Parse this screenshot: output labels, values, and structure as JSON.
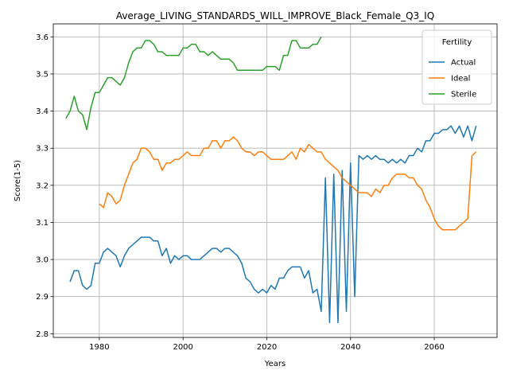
{
  "chart_data": {
    "type": "line",
    "title": "Average_LIVING_STANDARDS_WILL_IMPROVE_Black_Female_Q3_IQ",
    "xlabel": "Years",
    "ylabel": "Score(1-5)",
    "xlim": [
      1969,
      2075
    ],
    "ylim": [
      2.79,
      3.635
    ],
    "xticks": [
      1980,
      2000,
      2020,
      2040,
      2060
    ],
    "yticks": [
      2.8,
      2.9,
      3.0,
      3.1,
      3.2,
      3.3,
      3.4,
      3.5,
      3.6
    ],
    "grid": true,
    "legend": {
      "title": "Fertility",
      "placement": "top-right"
    },
    "series": [
      {
        "name": "Actual",
        "color": "#1f77b4",
        "x": [
          1973,
          1974,
          1975,
          1976,
          1977,
          1978,
          1979,
          1980,
          1981,
          1982,
          1983,
          1984,
          1985,
          1986,
          1987,
          1988,
          1989,
          1990,
          1991,
          1992,
          1993,
          1994,
          1995,
          1996,
          1997,
          1998,
          1999,
          2000,
          2001,
          2002,
          2003,
          2004,
          2005,
          2006,
          2007,
          2008,
          2009,
          2010,
          2011,
          2012,
          2013,
          2014,
          2015,
          2016,
          2017,
          2018,
          2019,
          2020,
          2021,
          2022,
          2023,
          2024,
          2025,
          2026,
          2027,
          2028,
          2029,
          2030,
          2031,
          2032,
          2033,
          2034,
          2035,
          2036,
          2037,
          2038,
          2039,
          2040,
          2041,
          2042,
          2043,
          2044,
          2045,
          2046,
          2047,
          2048,
          2049,
          2050,
          2051,
          2052,
          2053,
          2054,
          2055,
          2056,
          2057,
          2058,
          2059,
          2060,
          2061,
          2062,
          2063,
          2064,
          2065,
          2066,
          2067,
          2068,
          2069,
          2070
        ],
        "values": [
          2.94,
          2.97,
          2.97,
          2.93,
          2.92,
          2.93,
          2.99,
          2.99,
          3.02,
          3.03,
          3.02,
          3.01,
          2.98,
          3.01,
          3.03,
          3.04,
          3.05,
          3.06,
          3.06,
          3.06,
          3.05,
          3.05,
          3.01,
          3.03,
          2.99,
          3.01,
          3.0,
          3.01,
          3.01,
          3.0,
          3.0,
          3.0,
          3.01,
          3.02,
          3.03,
          3.03,
          3.02,
          3.03,
          3.03,
          3.02,
          3.01,
          2.99,
          2.95,
          2.94,
          2.92,
          2.91,
          2.92,
          2.91,
          2.93,
          2.92,
          2.95,
          2.95,
          2.97,
          2.98,
          2.98,
          2.98,
          2.95,
          2.97,
          2.91,
          2.92,
          2.86,
          3.22,
          2.83,
          3.23,
          2.83,
          3.24,
          2.86,
          3.26,
          2.9,
          3.28,
          3.27,
          3.28,
          3.27,
          3.28,
          3.27,
          3.27,
          3.26,
          3.27,
          3.26,
          3.27,
          3.26,
          3.28,
          3.28,
          3.3,
          3.29,
          3.32,
          3.32,
          3.34,
          3.34,
          3.35,
          3.35,
          3.36,
          3.34,
          3.36,
          3.33,
          3.36,
          3.32,
          3.36
        ]
      },
      {
        "name": "Ideal",
        "color": "#ff7f0e",
        "x": [
          1980,
          1981,
          1982,
          1983,
          1984,
          1985,
          1986,
          1987,
          1988,
          1989,
          1990,
          1991,
          1992,
          1993,
          1994,
          1995,
          1996,
          1997,
          1998,
          1999,
          2000,
          2001,
          2002,
          2003,
          2004,
          2005,
          2006,
          2007,
          2008,
          2009,
          2010,
          2011,
          2012,
          2013,
          2014,
          2015,
          2016,
          2017,
          2018,
          2019,
          2020,
          2021,
          2022,
          2023,
          2024,
          2025,
          2026,
          2027,
          2028,
          2029,
          2030,
          2031,
          2032,
          2033,
          2034,
          2035,
          2036,
          2037,
          2038,
          2039,
          2040,
          2041,
          2042,
          2043,
          2044,
          2045,
          2046,
          2047,
          2048,
          2049,
          2050,
          2051,
          2052,
          2053,
          2054,
          2055,
          2056,
          2057,
          2058,
          2059,
          2060,
          2061,
          2062,
          2063,
          2064,
          2065,
          2066,
          2067,
          2068,
          2069,
          2070
        ],
        "values": [
          3.15,
          3.14,
          3.18,
          3.17,
          3.15,
          3.16,
          3.2,
          3.23,
          3.26,
          3.27,
          3.3,
          3.3,
          3.29,
          3.27,
          3.27,
          3.24,
          3.26,
          3.26,
          3.27,
          3.27,
          3.28,
          3.29,
          3.28,
          3.28,
          3.28,
          3.3,
          3.3,
          3.32,
          3.32,
          3.3,
          3.32,
          3.32,
          3.33,
          3.32,
          3.3,
          3.29,
          3.29,
          3.28,
          3.29,
          3.29,
          3.28,
          3.27,
          3.27,
          3.27,
          3.27,
          3.28,
          3.29,
          3.27,
          3.3,
          3.29,
          3.31,
          3.3,
          3.29,
          3.29,
          3.27,
          3.26,
          3.25,
          3.24,
          3.22,
          3.21,
          3.2,
          3.19,
          3.18,
          3.18,
          3.18,
          3.17,
          3.19,
          3.18,
          3.2,
          3.2,
          3.22,
          3.23,
          3.23,
          3.23,
          3.22,
          3.22,
          3.2,
          3.19,
          3.16,
          3.14,
          3.11,
          3.09,
          3.08,
          3.08,
          3.08,
          3.08,
          3.09,
          3.1,
          3.11,
          3.28,
          3.29
        ]
      },
      {
        "name": "Sterile",
        "color": "#2ca02c",
        "x": [
          1972,
          1973,
          1974,
          1975,
          1976,
          1977,
          1978,
          1979,
          1980,
          1981,
          1982,
          1983,
          1984,
          1985,
          1986,
          1987,
          1988,
          1989,
          1990,
          1991,
          1992,
          1993,
          1994,
          1995,
          1996,
          1997,
          1998,
          1999,
          2000,
          2001,
          2002,
          2003,
          2004,
          2005,
          2006,
          2007,
          2008,
          2009,
          2010,
          2011,
          2012,
          2013,
          2014,
          2015,
          2016,
          2017,
          2018,
          2019,
          2020,
          2021,
          2022,
          2023,
          2024,
          2025,
          2026,
          2027,
          2028,
          2029,
          2030,
          2031,
          2032,
          2033
        ],
        "values": [
          3.38,
          3.4,
          3.44,
          3.4,
          3.39,
          3.35,
          3.41,
          3.45,
          3.45,
          3.47,
          3.49,
          3.49,
          3.48,
          3.47,
          3.49,
          3.53,
          3.56,
          3.57,
          3.57,
          3.59,
          3.59,
          3.58,
          3.56,
          3.56,
          3.55,
          3.55,
          3.55,
          3.55,
          3.57,
          3.57,
          3.58,
          3.58,
          3.56,
          3.56,
          3.55,
          3.56,
          3.55,
          3.54,
          3.54,
          3.54,
          3.53,
          3.51,
          3.51,
          3.51,
          3.51,
          3.51,
          3.51,
          3.51,
          3.52,
          3.52,
          3.52,
          3.51,
          3.55,
          3.55,
          3.59,
          3.59,
          3.57,
          3.57,
          3.57,
          3.58,
          3.58,
          3.6
        ]
      }
    ]
  }
}
